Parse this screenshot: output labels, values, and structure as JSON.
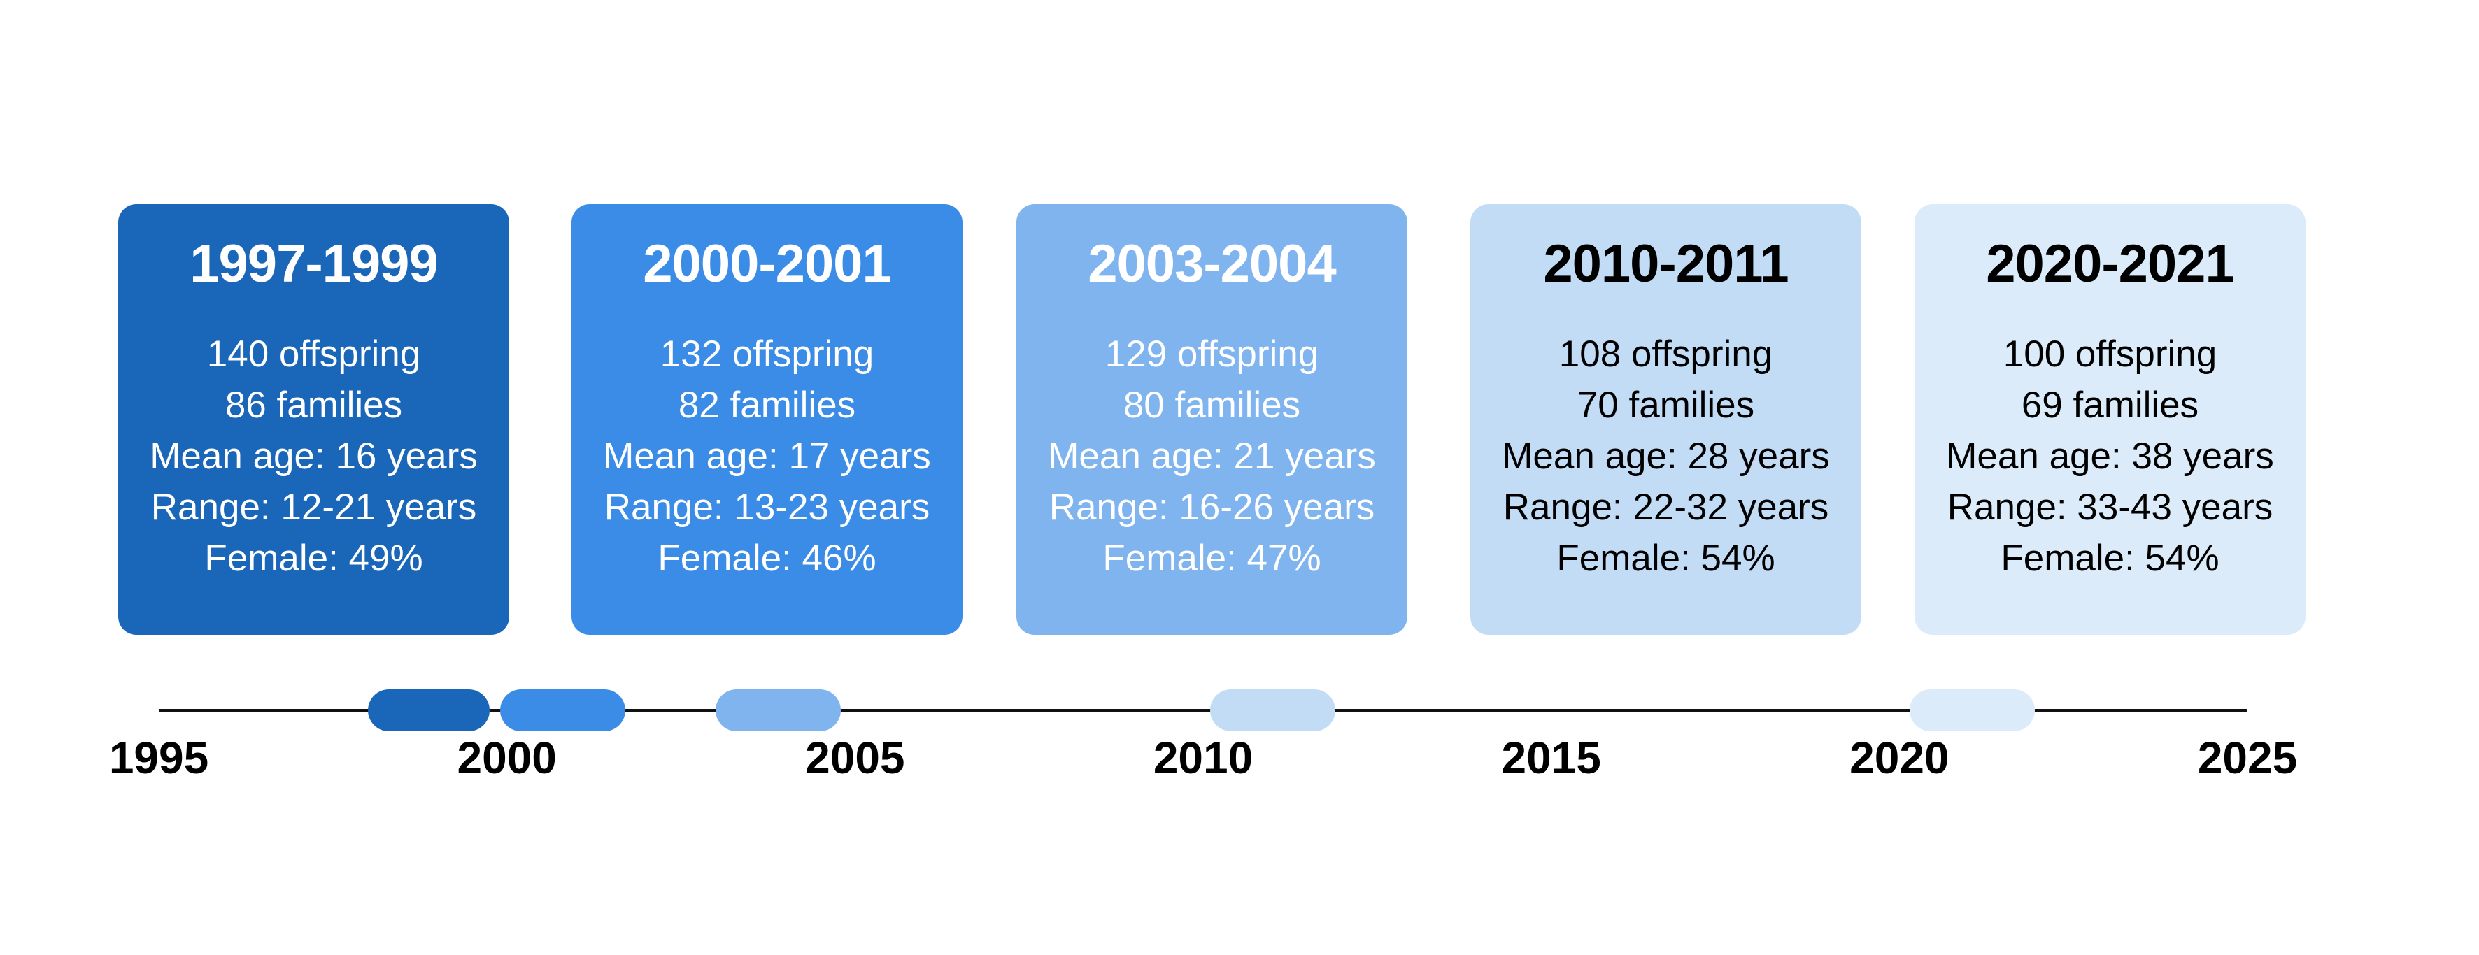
{
  "colors": {
    "axis": "#111111",
    "shades": [
      "#1a66b8",
      "#3b8ce6",
      "#7fb4ef",
      "#c2dcf6",
      "#dcebfa"
    ],
    "text_light": "#ffffff",
    "text_dark": "#000000"
  },
  "timeline": {
    "min_year": 1995,
    "max_year": 2025,
    "ticks": [
      "1995",
      "2000",
      "2005",
      "2010",
      "2015",
      "2020",
      "2025"
    ]
  },
  "periods": [
    {
      "title": "1997-1999",
      "start": 1998.0,
      "end": 1999.75,
      "lines": [
        "140 offspring",
        "86 families",
        "Mean age: 16 years",
        "Range: 12-21 years",
        "Female: 49%"
      ]
    },
    {
      "title": "2000-2001",
      "start": 1999.9,
      "end": 2001.7,
      "lines": [
        "132 offspring",
        "82 families",
        "Mean age: 17 years",
        "Range: 13-23 years",
        "Female: 46%"
      ]
    },
    {
      "title": "2003-2004",
      "start": 2003.0,
      "end": 2004.8,
      "lines": [
        "129 offspring",
        "80 families",
        "Mean age: 21 years",
        "Range: 16-26 years",
        "Female: 47%"
      ]
    },
    {
      "title": "2010-2011",
      "start": 2010.1,
      "end": 2011.9,
      "lines": [
        "108 offspring",
        "70 families",
        "Mean age: 28 years",
        "Range: 22-32 years",
        "Female: 54%"
      ]
    },
    {
      "title": "2020-2021",
      "start": 2020.15,
      "end": 2021.95,
      "lines": [
        "100 offspring",
        "69 families",
        "Mean age: 38 years",
        "Range: 33-43 years",
        "Female: 54%"
      ]
    }
  ]
}
